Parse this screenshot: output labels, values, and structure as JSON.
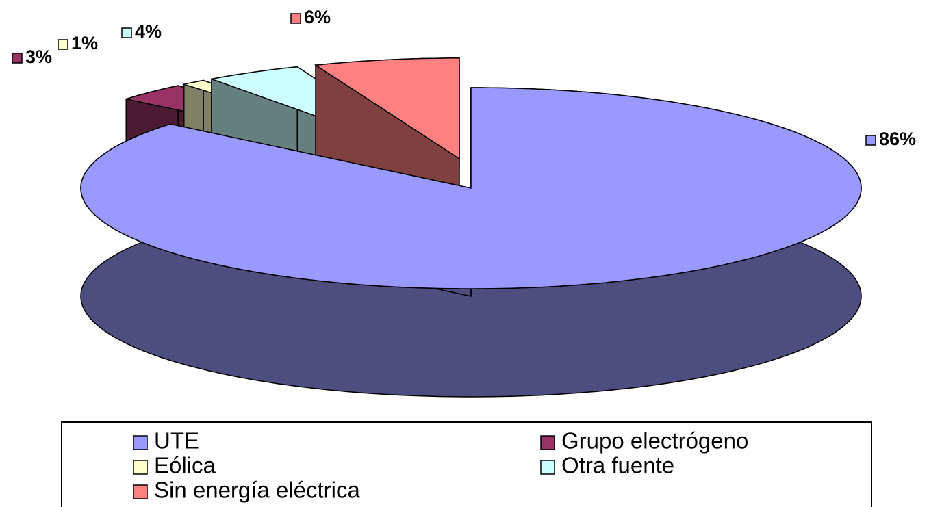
{
  "chart_data": {
    "type": "pie",
    "categories": [
      "UTE",
      "Grupo electrógeno",
      "Eólica",
      "Otra fuente",
      "Sin energía eléctrica"
    ],
    "values": [
      86,
      3,
      1,
      4,
      6
    ],
    "value_labels": [
      "86%",
      "3%",
      "1%",
      "4%",
      "6%"
    ],
    "colors": [
      "#9999ff",
      "#993366",
      "#ffffcc",
      "#ccffff",
      "#ff8080"
    ]
  }
}
